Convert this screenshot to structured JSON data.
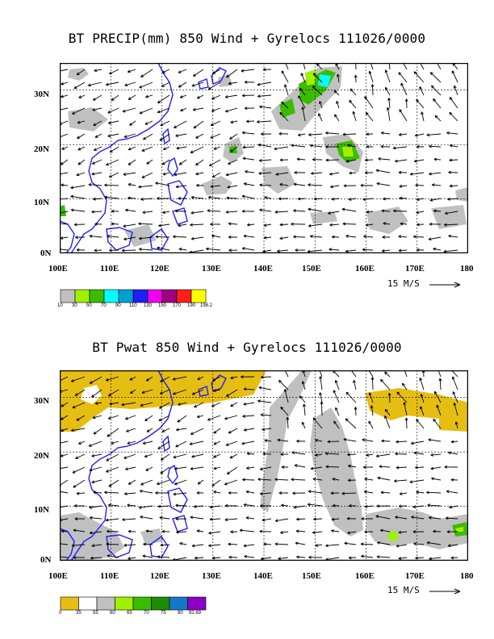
{
  "panel1": {
    "title": "BT PRECIP(mm) 850 Wind + Gyrelocs 111026/0000",
    "lat_labels": [
      "30N",
      "20N",
      "10N",
      "0N"
    ],
    "lon_labels": [
      "100E",
      "110E",
      "120E",
      "130E",
      "140E",
      "150E",
      "160E",
      "170E",
      "180"
    ],
    "vector_scale_label": "15 M/S",
    "colorbar": {
      "colors": [
        "#c0c0c0",
        "#a0f000",
        "#3cbc00",
        "#00ffff",
        "#00a0d0",
        "#1e1eff",
        "#f000f0",
        "#a00080",
        "#ff1e1e",
        "#ffff00"
      ],
      "labels": [
        "10",
        "30",
        "50",
        "70",
        "90",
        "110",
        "130",
        "150",
        "170",
        "190",
        "198.2"
      ]
    }
  },
  "panel2": {
    "title": "BT Pwat 850 Wind + Gyrelocs 111026/0000",
    "lat_labels": [
      "30N",
      "20N",
      "10N",
      "0N"
    ],
    "lon_labels": [
      "100E",
      "110E",
      "120E",
      "130E",
      "140E",
      "150E",
      "160E",
      "170E",
      "180"
    ],
    "vector_scale_label": "15 M/S",
    "colorbar": {
      "colors": [
        "#e6be12",
        "#ffffff",
        "#c0c0c0",
        "#a0f000",
        "#3cbc00",
        "#1e8c00",
        "#1478c8",
        "#8c00c8"
      ],
      "labels": [
        "0",
        "35",
        "55",
        "60",
        "65",
        "70",
        "75",
        "80",
        "82.69"
      ]
    }
  }
}
